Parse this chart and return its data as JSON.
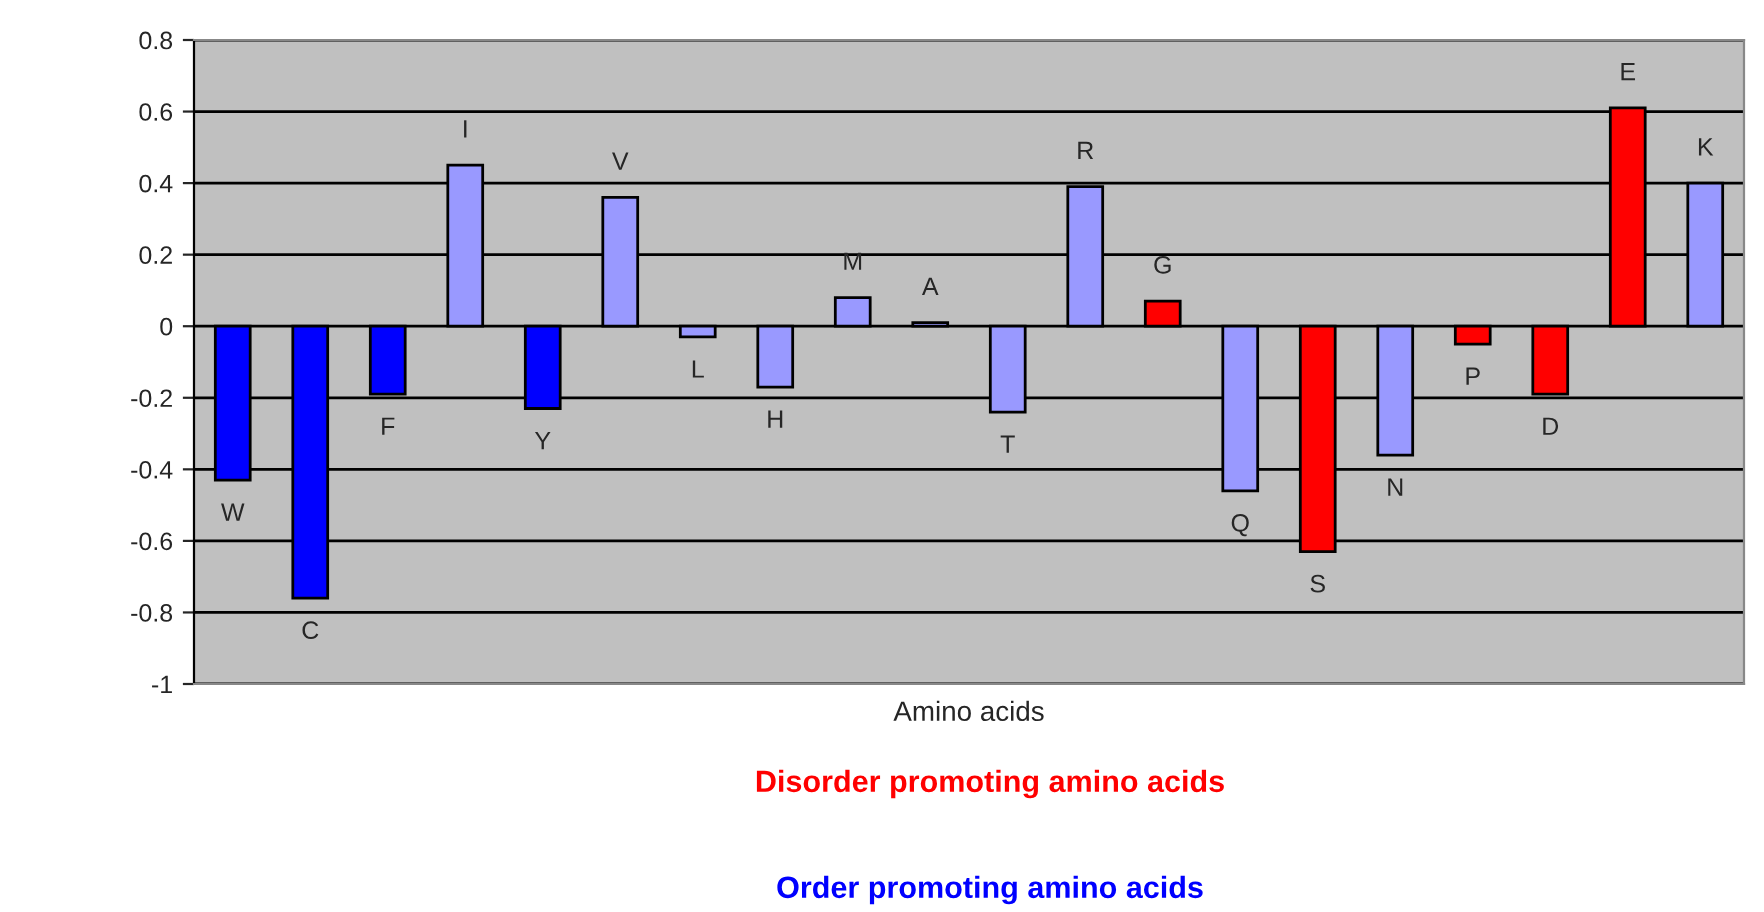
{
  "chart_data": {
    "type": "bar",
    "xlabel": "Amino acids",
    "categories": [
      "W",
      "C",
      "F",
      "I",
      "Y",
      "V",
      "L",
      "H",
      "M",
      "A",
      "T",
      "R",
      "G",
      "Q",
      "S",
      "N",
      "P",
      "D",
      "E",
      "K"
    ],
    "series": [
      {
        "name": "Disorder promoting amino acids",
        "color": "#ff0000",
        "values": [
          null,
          null,
          null,
          null,
          null,
          null,
          null,
          null,
          null,
          null,
          null,
          null,
          0.07,
          null,
          -0.63,
          null,
          -0.05,
          -0.19,
          0.61,
          null
        ]
      },
      {
        "name": "Order promoting amino acids",
        "color": "#0000ff",
        "values": [
          -0.43,
          -0.76,
          -0.19,
          null,
          -0.23,
          null,
          null,
          null,
          null,
          null,
          null,
          null,
          null,
          null,
          null,
          null,
          null,
          null,
          null,
          null
        ]
      },
      {
        "color": "#9999ff",
        "values": [
          null,
          null,
          null,
          0.45,
          null,
          0.36,
          -0.03,
          -0.17,
          0.08,
          0.01,
          -0.24,
          0.39,
          null,
          -0.46,
          null,
          -0.36,
          null,
          null,
          null,
          0.4
        ]
      }
    ],
    "ylim": [
      -1,
      0.8
    ],
    "yticks": [
      -1,
      -0.8,
      -0.6,
      -0.4,
      -0.2,
      0,
      0.2,
      0.4,
      0.6,
      0.8
    ],
    "grid": "y",
    "legend": "bottom"
  }
}
